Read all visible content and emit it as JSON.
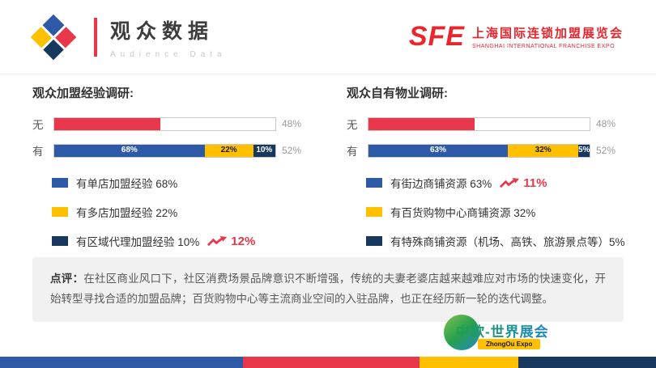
{
  "header": {
    "title": "观众数据",
    "subtitle": "Audience Data",
    "expo_logo": {
      "abbr": "SFE",
      "name_cn": "上海国际连锁加盟展览会",
      "name_en": "SHANGHAI INTERNATIONAL FRANCHISE EXPO"
    }
  },
  "colors": {
    "red": "#e8374a",
    "blue": "#2e59a7",
    "yellow": "#ffc000",
    "navy": "#17375e",
    "gray_label": "#9b9b9b"
  },
  "chart_data": [
    {
      "type": "bar",
      "orientation": "horizontal-stacked",
      "title": "观众加盟经验调研:",
      "xlim": [
        0,
        100
      ],
      "rows": [
        {
          "label": "无",
          "total_label": "48%",
          "segments": [
            {
              "value": 48,
              "color": "#e8374a",
              "label": ""
            }
          ]
        },
        {
          "label": "有",
          "total_label": "52%",
          "segments": [
            {
              "value": 68,
              "color": "#2e59a7",
              "label": "68%",
              "label_color": "#ffffff"
            },
            {
              "value": 22,
              "color": "#ffc000",
              "label": "22%",
              "label_color": "#1a1a1a"
            },
            {
              "value": 10,
              "color": "#17375e",
              "label": "10%",
              "label_color": "#ffffff"
            }
          ]
        }
      ],
      "legend": [
        {
          "color": "#2e59a7",
          "label": "有单店加盟经验 68%",
          "trend": null
        },
        {
          "color": "#ffc000",
          "label": "有多店加盟经验 22%",
          "trend": null
        },
        {
          "color": "#17375e",
          "label": "有区域代理加盟经验 10%",
          "trend": "12%"
        }
      ]
    },
    {
      "type": "bar",
      "orientation": "horizontal-stacked",
      "title": "观众自有物业调研:",
      "xlim": [
        0,
        100
      ],
      "rows": [
        {
          "label": "无",
          "total_label": "48%",
          "segments": [
            {
              "value": 48,
              "color": "#e8374a",
              "label": ""
            }
          ]
        },
        {
          "label": "有",
          "total_label": "52%",
          "segments": [
            {
              "value": 63,
              "color": "#2e59a7",
              "label": "63%",
              "label_color": "#ffffff"
            },
            {
              "value": 32,
              "color": "#ffc000",
              "label": "32%",
              "label_color": "#1a1a1a"
            },
            {
              "value": 5,
              "color": "#17375e",
              "label": "5%",
              "label_color": "#ffffff"
            }
          ]
        }
      ],
      "legend": [
        {
          "color": "#2e59a7",
          "label": "有街边商铺资源 63%",
          "trend": "11%"
        },
        {
          "color": "#ffc000",
          "label": "有百货购物中心商铺资源 32%",
          "trend": null
        },
        {
          "color": "#17375e",
          "label": "有特殊商铺资源（机场、高铁、旅游景点等）5%",
          "trend": null
        }
      ]
    }
  ],
  "comment": {
    "label": "点评：",
    "text": "在社区商业风口下，社区消费场景品牌意识不断增强，传统的夫妻老婆店越来越难应对市场的快速变化，开始转型寻找合适的加盟品牌；百货购物中心等主流商业空间的入驻品牌，也正在经历新一轮的迭代调整。"
  },
  "footer": {
    "brand_cn": "中欧-世界展会",
    "brand_en": "ZhongOu Expo"
  }
}
